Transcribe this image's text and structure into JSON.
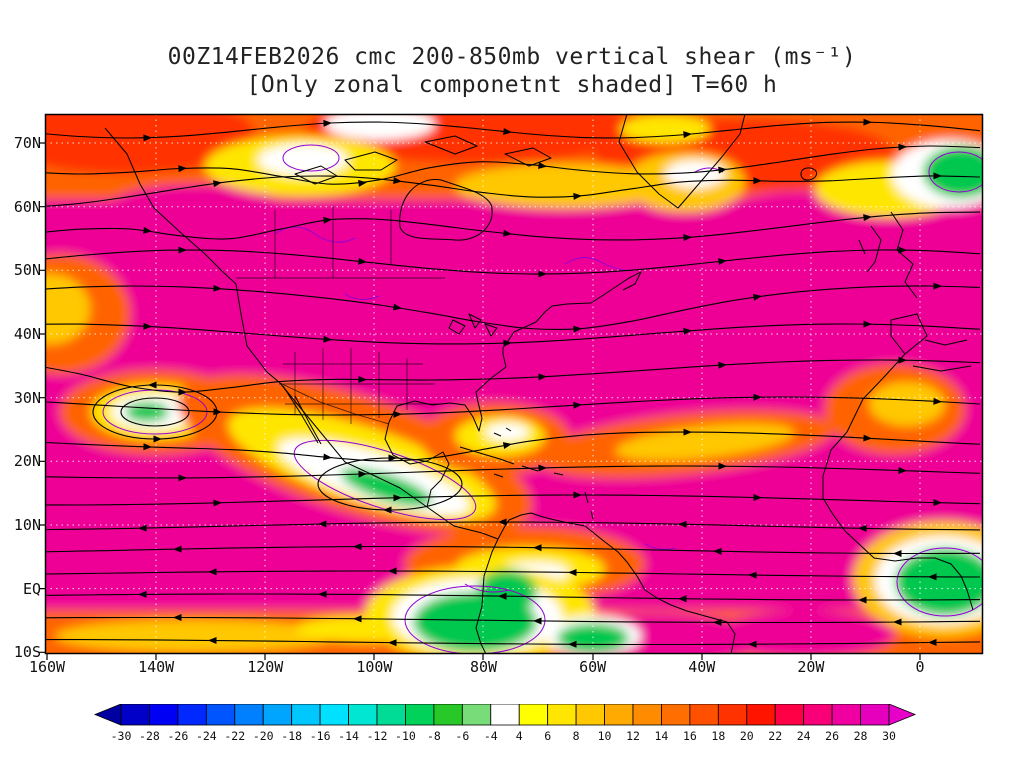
{
  "title": {
    "line1": "00Z14FEB2026 cmc 200-850mb vertical shear (ms⁻¹)",
    "line2": "[Only zonal componetnt shaded] T=60 h"
  },
  "map": {
    "y_axis_labels": [
      "70N",
      "60N",
      "50N",
      "40N",
      "30N",
      "20N",
      "10N",
      "EQ",
      "10S"
    ],
    "x_axis_labels": [
      "160W",
      "140W",
      "120W",
      "100W",
      "80W",
      "60W",
      "40W",
      "20W",
      "0"
    ]
  },
  "colorbar": {
    "left_arrow_color": "#0000A0",
    "right_arrow_color": "#E600C8",
    "segment_colors": [
      "#0000C8",
      "#0000F5",
      "#0028FF",
      "#0055FF",
      "#0080FF",
      "#00A5FF",
      "#00C8FF",
      "#00E1FF",
      "#00E6D2",
      "#00DC96",
      "#00D25A",
      "#28C828",
      "#78DC78",
      "#FFFFFF",
      "#FFFF00",
      "#FFE600",
      "#FFC800",
      "#FFAA00",
      "#FF8C00",
      "#FF6E00",
      "#FF5000",
      "#FF3200",
      "#FF1400",
      "#FF0046",
      "#FA0078",
      "#F000A0",
      "#E600BE"
    ],
    "tick_labels": [
      "-30",
      "-28",
      "-26",
      "-24",
      "-22",
      "-20",
      "-18",
      "-16",
      "-14",
      "-12",
      "-10",
      "-8",
      "-6",
      "-4",
      "4",
      "6",
      "8",
      "10",
      "12",
      "14",
      "16",
      "18",
      "20",
      "22",
      "24",
      "26",
      "28",
      "30"
    ]
  },
  "chart_data": {
    "type": "heatmap",
    "title": "00Z14FEB2026 cmc 200-850mb vertical shear (ms⁻¹)",
    "subtitle": "[Only zonal componetnt shaded] T=60 h",
    "model": "cmc",
    "valid_time": "00Z14FEB2026",
    "forecast_hour": 60,
    "layer": "200-850mb",
    "units": "ms⁻¹",
    "x_axis": {
      "label": "longitude",
      "ticks": [
        "160W",
        "140W",
        "120W",
        "100W",
        "80W",
        "60W",
        "40W",
        "20W",
        "0"
      ]
    },
    "y_axis": {
      "label": "latitude",
      "ticks": [
        "70N",
        "60N",
        "50N",
        "40N",
        "30N",
        "20N",
        "10N",
        "EQ",
        "10S"
      ]
    },
    "colorbar_levels": [
      -30,
      -28,
      -26,
      -24,
      -22,
      -20,
      -18,
      -16,
      -14,
      -12,
      -10,
      -8,
      -6,
      -4,
      4,
      6,
      8,
      10,
      12,
      14,
      16,
      18,
      20,
      22,
      24,
      26,
      28,
      30
    ],
    "field_summary": "Zonal component of 200-850mb shear shaded; magenta (>=28 ms⁻¹) dominates most mid-latitudes and subtropics; orange/red/yellow band along 60-75N; near-zero white/green pockets near 140W/28N, over Mexico ~95W/18N, eastern Pacific south of the equator ~85W, and Gulf of Guinea near 0E; black streamlines with arrowheads show shear vector flow, westerly in mid-latitudes and easterly in the deep tropics; thin purple contours outline weak-shear regions; white dotted graticule every 10 lat / 20 lon."
  }
}
